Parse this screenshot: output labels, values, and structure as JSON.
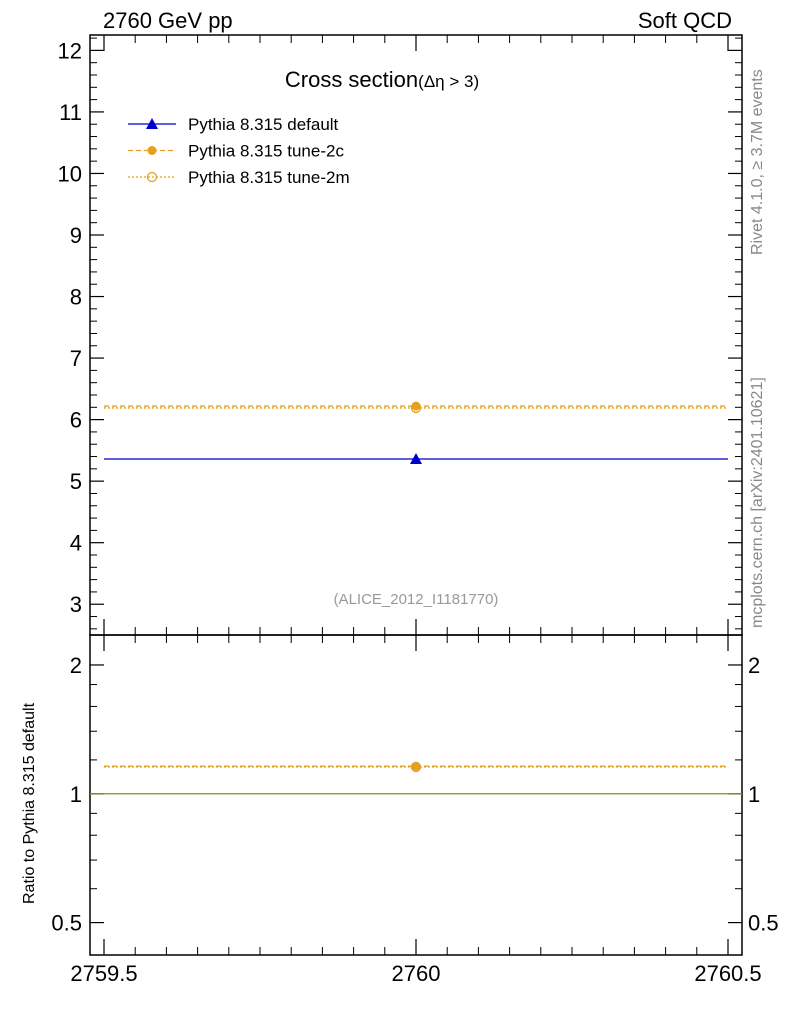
{
  "header": {
    "left": "2760 GeV pp",
    "right": "Soft QCD"
  },
  "side_labels": {
    "rivet": "Rivet 4.1.0, ≥ 3.7M events",
    "mcplots": "mcplots.cern.ch [arXiv:2401.10621]"
  },
  "colors": {
    "default": "#0000cc",
    "tune2c": "#e6a020",
    "tune2m": "#e6a020",
    "ratio_ref": "#7a9a10",
    "watermark": "#999999"
  },
  "chart_data": [
    {
      "type": "line",
      "panel": "main",
      "title": "Cross section",
      "title_sub": "(Δη > 3)",
      "watermark": "(ALICE_2012_I1181770)",
      "xlim": [
        2759.5,
        2760.5
      ],
      "ylim": [
        2.5,
        12.25
      ],
      "yticks": [
        "3",
        "4",
        "5",
        "6",
        "7",
        "8",
        "9",
        "10",
        "11",
        "12"
      ],
      "ytick_values": [
        3,
        4,
        5,
        6,
        7,
        8,
        9,
        10,
        11,
        12
      ],
      "legend_position": "top-left",
      "series": [
        {
          "name": "Pythia 8.315 default",
          "x": [
            2760
          ],
          "xerr": [
            0.5
          ],
          "y": [
            5.36
          ],
          "marker": "filled-triangle",
          "line": "solid",
          "color": "#0000cc"
        },
        {
          "name": "Pythia 8.315 tune-2c",
          "x": [
            2760
          ],
          "xerr": [
            0.5
          ],
          "y": [
            6.22
          ],
          "marker": "filled-circle",
          "line": "dashed",
          "color": "#e6a020"
        },
        {
          "name": "Pythia 8.315 tune-2m",
          "x": [
            2760
          ],
          "xerr": [
            0.5
          ],
          "y": [
            6.19
          ],
          "marker": "open-circle",
          "line": "dotted",
          "color": "#e6a020"
        }
      ]
    },
    {
      "type": "line",
      "panel": "ratio",
      "ylabel": "Ratio to Pythia 8.315 default",
      "xlim": [
        2759.5,
        2760.5
      ],
      "ylim": [
        0.42,
        2.35
      ],
      "yscale": "log",
      "yticks": [
        "0.5",
        "1",
        "2"
      ],
      "ytick_values": [
        0.5,
        1,
        2
      ],
      "xticks": [
        "2759.5",
        "2760",
        "2760.5"
      ],
      "xtick_values": [
        2759.5,
        2760,
        2760.5
      ],
      "series": [
        {
          "name": "Pythia 8.315 default",
          "x": [
            2760
          ],
          "y": [
            1.0
          ],
          "color": "#7a9a10",
          "line": "solid"
        },
        {
          "name": "Pythia 8.315 tune-2c",
          "x": [
            2760
          ],
          "y": [
            1.16
          ],
          "color": "#e6a020",
          "line": "dashed",
          "marker": "filled-circle"
        },
        {
          "name": "Pythia 8.315 tune-2m",
          "x": [
            2760
          ],
          "y": [
            1.155
          ],
          "color": "#e6a020",
          "line": "dotted",
          "marker": "open-circle"
        }
      ]
    }
  ]
}
